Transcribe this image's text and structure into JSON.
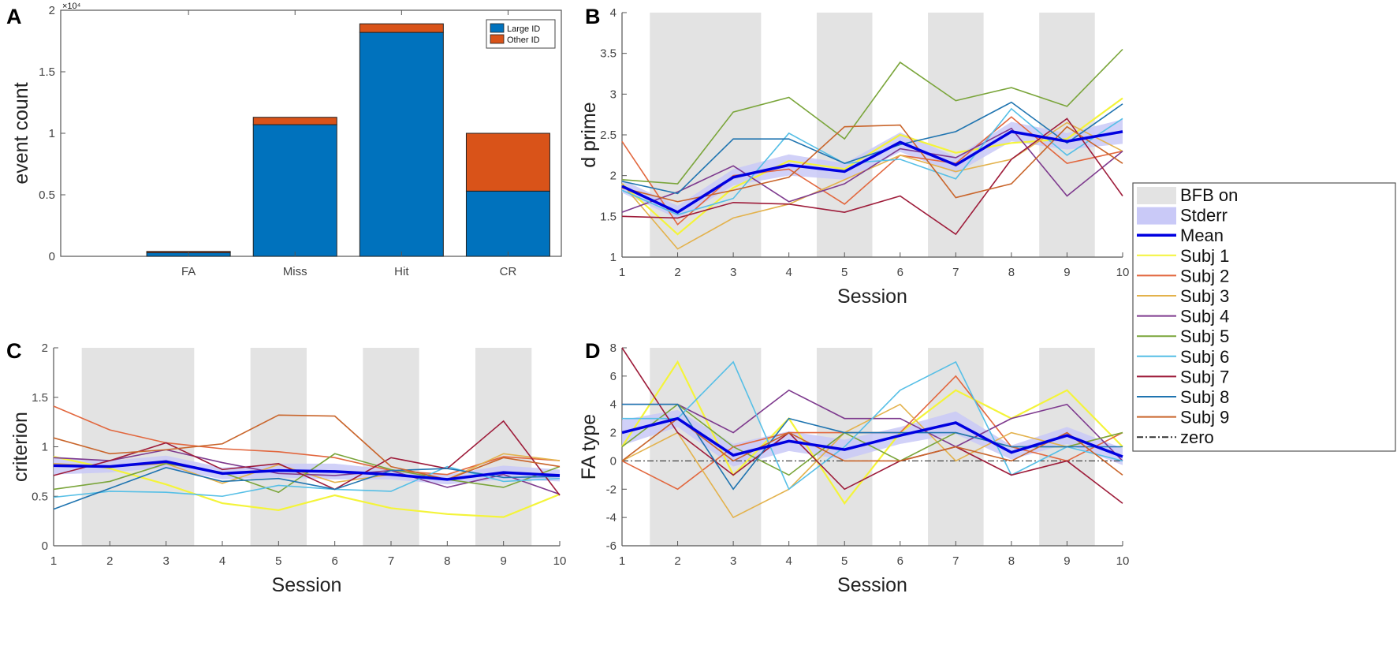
{
  "legend": {
    "entries": [
      {
        "label": "BFB on",
        "kind": "patch",
        "color": "#e3e3e3"
      },
      {
        "label": "Stderr",
        "kind": "patch",
        "color": "#c9c9f7"
      },
      {
        "label": "Mean",
        "kind": "line",
        "color": "#0000e0"
      },
      {
        "label": "Subj 1",
        "kind": "line",
        "color": "#f4f43a"
      },
      {
        "label": "Subj 2",
        "kind": "line",
        "color": "#e2673e"
      },
      {
        "label": "Subj 3",
        "kind": "line",
        "color": "#e3b24c"
      },
      {
        "label": "Subj 4",
        "kind": "line",
        "color": "#7e3a8e"
      },
      {
        "label": "Subj 5",
        "kind": "line",
        "color": "#7aa53a"
      },
      {
        "label": "Subj 6",
        "kind": "line",
        "color": "#56bfe6"
      },
      {
        "label": "Subj 7",
        "kind": "line",
        "color": "#9e1c3a"
      },
      {
        "label": "Subj 8",
        "kind": "line",
        "color": "#1f74b0"
      },
      {
        "label": "Subj 9",
        "kind": "line",
        "color": "#c9652b"
      },
      {
        "label": "zero",
        "kind": "dashdot",
        "color": "#333333"
      }
    ]
  },
  "chart_data": [
    {
      "panel": "A",
      "type": "bar",
      "stacked": true,
      "categories": [
        "",
        "FA",
        "Miss",
        "Hit",
        "CR"
      ],
      "ylabel": "event count",
      "ylim": [
        0,
        2
      ],
      "yticks": [
        0,
        0.5,
        1,
        1.5,
        2
      ],
      "y_exponent": "×10⁴",
      "legend_position": "top-right",
      "series": [
        {
          "name": "Large ID",
          "color": "#0072bd",
          "values": [
            0,
            0.03,
            1.07,
            1.82,
            0.53
          ]
        },
        {
          "name": "Other ID",
          "color": "#d95319",
          "values": [
            0,
            0.01,
            0.06,
            0.07,
            0.47
          ]
        }
      ]
    },
    {
      "panel": "B",
      "type": "line",
      "xlabel": "Session",
      "ylabel": "d prime",
      "x": [
        1,
        2,
        3,
        4,
        5,
        6,
        7,
        8,
        9,
        10
      ],
      "ylim": [
        1,
        4
      ],
      "yticks": [
        1,
        1.5,
        2,
        2.5,
        3,
        3.5,
        4
      ],
      "shaded_sessions": [
        [
          1.5,
          3.5
        ],
        [
          4.5,
          5.5
        ],
        [
          6.5,
          7.5
        ],
        [
          8.5,
          9.5
        ]
      ],
      "mean": [
        1.87,
        1.55,
        1.98,
        2.13,
        2.05,
        2.41,
        2.13,
        2.54,
        2.42,
        2.54
      ],
      "stderr": [
        0.08,
        0.08,
        0.1,
        0.13,
        0.1,
        0.12,
        0.1,
        0.12,
        0.1,
        0.15
      ],
      "subjects": [
        [
          1.9,
          1.28,
          1.85,
          2.18,
          2.08,
          2.5,
          2.28,
          2.4,
          2.45,
          2.95
        ],
        [
          2.42,
          1.4,
          2.0,
          2.08,
          1.65,
          2.25,
          2.15,
          2.72,
          2.15,
          2.3
        ],
        [
          1.9,
          1.1,
          1.48,
          1.65,
          1.95,
          2.25,
          2.05,
          2.2,
          2.65,
          2.3
        ],
        [
          1.55,
          1.8,
          2.12,
          1.68,
          1.9,
          2.33,
          2.22,
          2.58,
          1.75,
          2.3
        ],
        [
          1.95,
          1.9,
          2.78,
          2.96,
          2.45,
          3.39,
          2.92,
          3.08,
          2.85,
          3.55
        ],
        [
          1.82,
          1.52,
          1.72,
          2.52,
          2.15,
          2.2,
          1.96,
          2.82,
          2.25,
          2.7
        ],
        [
          1.5,
          1.48,
          1.67,
          1.65,
          1.55,
          1.75,
          1.28,
          2.2,
          2.7,
          1.75
        ],
        [
          1.93,
          1.78,
          2.45,
          2.45,
          2.15,
          2.38,
          2.54,
          2.9,
          2.4,
          2.88
        ],
        [
          1.85,
          1.68,
          1.82,
          1.98,
          2.6,
          2.62,
          1.73,
          1.9,
          2.6,
          2.15
        ]
      ]
    },
    {
      "panel": "C",
      "type": "line",
      "xlabel": "Session",
      "ylabel": "criterion",
      "x": [
        1,
        2,
        3,
        4,
        5,
        6,
        7,
        8,
        9,
        10
      ],
      "ylim": [
        0,
        2
      ],
      "yticks": [
        0,
        0.5,
        1,
        1.5,
        2
      ],
      "shaded_sessions": [
        [
          1.5,
          3.5
        ],
        [
          4.5,
          5.5
        ],
        [
          6.5,
          7.5
        ],
        [
          8.5,
          9.5
        ]
      ],
      "mean": [
        0.81,
        0.8,
        0.85,
        0.73,
        0.76,
        0.75,
        0.72,
        0.67,
        0.74,
        0.71
      ],
      "stderr": [
        0.09,
        0.06,
        0.06,
        0.06,
        0.07,
        0.08,
        0.05,
        0.05,
        0.07,
        0.06
      ],
      "subjects": [
        [
          0.9,
          0.78,
          0.62,
          0.43,
          0.36,
          0.51,
          0.38,
          0.32,
          0.29,
          0.52
        ],
        [
          1.41,
          1.17,
          1.04,
          0.98,
          0.95,
          0.89,
          0.76,
          0.72,
          0.9,
          0.86
        ],
        [
          0.83,
          0.8,
          0.83,
          0.63,
          0.82,
          0.64,
          0.72,
          0.67,
          0.93,
          0.86
        ],
        [
          0.89,
          0.86,
          0.97,
          0.84,
          0.73,
          0.71,
          0.76,
          0.59,
          0.72,
          0.52
        ],
        [
          0.57,
          0.65,
          0.83,
          0.74,
          0.54,
          0.93,
          0.77,
          0.67,
          0.59,
          0.8
        ],
        [
          0.49,
          0.55,
          0.54,
          0.5,
          0.61,
          0.57,
          0.55,
          0.8,
          0.65,
          0.68
        ],
        [
          0.71,
          0.86,
          1.04,
          0.77,
          0.83,
          0.57,
          0.89,
          0.78,
          1.26,
          0.51
        ],
        [
          0.37,
          0.58,
          0.79,
          0.65,
          0.68,
          0.57,
          0.76,
          0.78,
          0.69,
          0.7
        ],
        [
          1.09,
          0.93,
          0.97,
          1.03,
          1.32,
          1.31,
          0.8,
          0.67,
          0.89,
          0.8
        ]
      ]
    },
    {
      "panel": "D",
      "type": "line",
      "xlabel": "Session",
      "ylabel": "FA type",
      "x": [
        1,
        2,
        3,
        4,
        5,
        6,
        7,
        8,
        9,
        10
      ],
      "ylim": [
        -6,
        8
      ],
      "yticks": [
        -6,
        -4,
        -2,
        0,
        2,
        4,
        6,
        8
      ],
      "zero_line": 0,
      "shaded_sessions": [
        [
          1.5,
          3.5
        ],
        [
          4.5,
          5.5
        ],
        [
          6.5,
          7.5
        ],
        [
          8.5,
          9.5
        ]
      ],
      "mean": [
        2,
        3,
        0.4,
        1.4,
        0.8,
        1.8,
        2.7,
        0.6,
        1.8,
        0.3
      ],
      "stderr": [
        0.9,
        0.6,
        0.8,
        0.7,
        0.7,
        0.6,
        0.8,
        0.5,
        0.6,
        0.6
      ],
      "subjects": [
        [
          1,
          7,
          -1,
          3,
          -3,
          2,
          5,
          3,
          5,
          1
        ],
        [
          0,
          -2,
          1,
          2,
          2,
          2,
          6,
          1,
          0,
          2
        ],
        [
          0,
          2,
          -4,
          -2,
          2,
          4,
          0,
          2,
          1,
          2
        ],
        [
          4,
          4,
          2,
          5,
          3,
          3,
          1,
          3,
          4,
          0
        ],
        [
          1,
          4,
          1,
          -1,
          2,
          0,
          2,
          1,
          1,
          2
        ],
        [
          3,
          3,
          7,
          -2,
          1,
          5,
          7,
          -1,
          1,
          0
        ],
        [
          8,
          2,
          -1,
          2,
          -2,
          0,
          1,
          -1,
          0,
          -3
        ],
        [
          4,
          4,
          -2,
          3,
          2,
          2,
          2,
          1,
          1,
          1
        ],
        [
          0,
          3,
          0,
          2,
          0,
          0,
          1,
          0,
          2,
          -1
        ]
      ]
    }
  ]
}
